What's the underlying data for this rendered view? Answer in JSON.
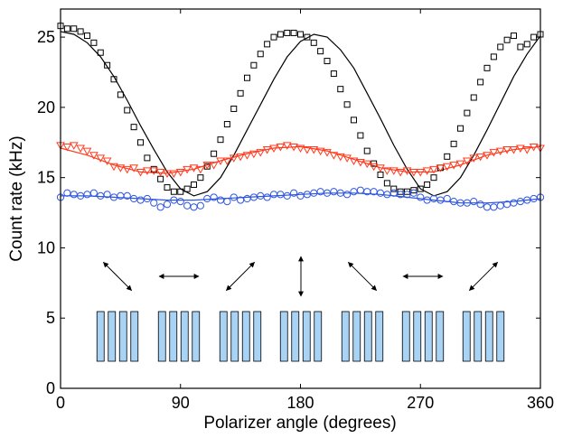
{
  "chart_data": {
    "type": "scatter",
    "title": "",
    "xlabel": "Polarizer angle (degrees)",
    "ylabel": "Count rate (kHz)",
    "xlim": [
      0,
      360
    ],
    "ylim": [
      0,
      27
    ],
    "xticks": [
      0,
      90,
      180,
      270,
      360
    ],
    "yticks": [
      0,
      5,
      10,
      15,
      20,
      25
    ],
    "grid": false,
    "legend": "none",
    "series": [
      {
        "color": "#000000",
        "marker": "square",
        "x": [
          0,
          5,
          10,
          15,
          20,
          25,
          30,
          35,
          40,
          45,
          50,
          55,
          60,
          65,
          70,
          75,
          80,
          85,
          90,
          95,
          100,
          105,
          110,
          115,
          120,
          125,
          130,
          135,
          140,
          145,
          150,
          155,
          160,
          165,
          170,
          175,
          180,
          185,
          190,
          195,
          200,
          205,
          210,
          215,
          220,
          225,
          230,
          235,
          240,
          245,
          250,
          255,
          260,
          265,
          270,
          275,
          280,
          285,
          290,
          295,
          300,
          305,
          310,
          315,
          320,
          325,
          330,
          335,
          340,
          345,
          350,
          355,
          360
        ],
        "values": [
          25.8,
          25.6,
          25.6,
          25.4,
          25.1,
          24.6,
          23.9,
          23.0,
          22.0,
          20.9,
          19.8,
          18.6,
          17.5,
          16.4,
          15.6,
          14.9,
          14.3,
          14.0,
          14.0,
          14.2,
          14.5,
          15.0,
          15.8,
          16.7,
          17.7,
          18.8,
          19.9,
          21.0,
          22.1,
          23.0,
          23.8,
          24.5,
          25.0,
          25.2,
          25.3,
          25.3,
          25.2,
          25.0,
          24.6,
          24.0,
          23.3,
          22.4,
          21.3,
          20.2,
          19.1,
          18.0,
          16.9,
          16.0,
          15.2,
          14.6,
          14.2,
          14.0,
          14.0,
          14.1,
          14.2,
          14.5,
          15.0,
          15.7,
          16.5,
          17.4,
          18.5,
          19.6,
          20.7,
          21.8,
          22.8,
          23.6,
          24.3,
          24.8,
          25.1,
          24.3,
          24.5,
          25.0,
          25.2
        ]
      },
      {
        "color": "#ff3b1f",
        "marker": "triangle-down",
        "x": [
          0,
          5,
          10,
          15,
          20,
          25,
          30,
          35,
          40,
          45,
          50,
          55,
          60,
          65,
          70,
          75,
          80,
          85,
          90,
          95,
          100,
          105,
          110,
          115,
          120,
          125,
          130,
          135,
          140,
          145,
          150,
          155,
          160,
          165,
          170,
          175,
          180,
          185,
          190,
          195,
          200,
          205,
          210,
          215,
          220,
          225,
          230,
          235,
          240,
          245,
          250,
          255,
          260,
          265,
          270,
          275,
          280,
          285,
          290,
          295,
          300,
          305,
          310,
          315,
          320,
          325,
          330,
          335,
          340,
          345,
          350,
          355,
          360
        ],
        "values": [
          17.3,
          17.2,
          17.3,
          17.1,
          16.9,
          16.6,
          16.4,
          16.2,
          15.8,
          15.7,
          15.6,
          15.7,
          15.4,
          15.5,
          15.5,
          15.4,
          15.3,
          15.3,
          15.4,
          15.6,
          15.7,
          15.6,
          15.9,
          15.9,
          16.2,
          16.2,
          16.4,
          16.5,
          16.6,
          16.7,
          16.8,
          17.0,
          17.1,
          17.2,
          17.3,
          17.2,
          17.1,
          17.0,
          17.0,
          16.9,
          16.8,
          16.6,
          16.5,
          16.4,
          16.2,
          16.1,
          16.0,
          15.8,
          15.7,
          15.5,
          15.5,
          15.4,
          15.5,
          15.4,
          15.4,
          15.5,
          15.6,
          15.7,
          15.8,
          15.9,
          16.0,
          16.2,
          16.4,
          16.5,
          16.6,
          16.8,
          16.9,
          17.0,
          17.0,
          17.1,
          17.0,
          17.2,
          17.1
        ]
      },
      {
        "color": "#2d55e0",
        "marker": "circle",
        "x": [
          0,
          5,
          10,
          15,
          20,
          25,
          30,
          35,
          40,
          45,
          50,
          55,
          60,
          65,
          70,
          75,
          80,
          85,
          90,
          95,
          100,
          105,
          110,
          115,
          120,
          125,
          130,
          135,
          140,
          145,
          150,
          155,
          160,
          165,
          170,
          175,
          180,
          185,
          190,
          195,
          200,
          205,
          210,
          215,
          220,
          225,
          230,
          235,
          240,
          245,
          250,
          255,
          260,
          265,
          270,
          275,
          280,
          285,
          290,
          295,
          300,
          305,
          310,
          315,
          320,
          325,
          330,
          335,
          340,
          345,
          350,
          355,
          360
        ],
        "values": [
          13.6,
          13.9,
          13.8,
          13.7,
          13.8,
          13.9,
          13.7,
          13.8,
          13.6,
          13.7,
          13.7,
          13.5,
          13.4,
          13.5,
          13.2,
          12.9,
          13.1,
          13.4,
          13.3,
          13.0,
          12.9,
          13.0,
          13.5,
          13.6,
          13.4,
          13.3,
          13.6,
          13.4,
          13.5,
          13.6,
          13.7,
          13.6,
          13.8,
          13.8,
          13.7,
          13.9,
          13.7,
          13.8,
          13.9,
          14.0,
          13.9,
          14.0,
          13.9,
          13.8,
          14.0,
          14.1,
          14.0,
          14.0,
          13.9,
          13.8,
          13.9,
          13.8,
          13.8,
          13.9,
          13.6,
          13.4,
          13.5,
          13.4,
          13.5,
          13.3,
          13.2,
          13.2,
          13.3,
          13.1,
          12.9,
          12.9,
          13.0,
          13.1,
          13.2,
          13.3,
          13.4,
          13.5,
          13.6
        ]
      }
    ],
    "fits": [
      {
        "color": "#000000",
        "x": [
          0,
          10,
          20,
          30,
          40,
          50,
          60,
          70,
          80,
          90,
          100,
          110,
          120,
          130,
          140,
          150,
          160,
          170,
          180,
          190,
          200,
          210,
          220,
          230,
          240,
          250,
          260,
          270,
          280,
          290,
          300,
          310,
          320,
          330,
          340,
          350,
          360
        ],
        "values": [
          25.4,
          25.2,
          24.6,
          23.6,
          22.2,
          20.5,
          18.7,
          17.0,
          15.4,
          14.2,
          13.7,
          14.0,
          15.0,
          16.6,
          18.4,
          20.2,
          22.0,
          23.6,
          24.7,
          25.2,
          25.0,
          24.1,
          22.8,
          21.0,
          19.2,
          17.3,
          15.6,
          14.2,
          13.7,
          14.0,
          15.0,
          16.6,
          18.4,
          20.3,
          22.2,
          23.8,
          25.1
        ]
      },
      {
        "color": "#ff3b1f",
        "x": [
          0,
          20,
          40,
          60,
          80,
          100,
          120,
          140,
          160,
          180,
          200,
          220,
          240,
          260,
          280,
          300,
          320,
          340,
          360
        ],
        "values": [
          17.1,
          16.6,
          15.9,
          15.4,
          15.3,
          15.6,
          16.2,
          16.7,
          17.1,
          17.2,
          16.9,
          16.3,
          15.7,
          15.4,
          15.4,
          15.9,
          16.6,
          17.0,
          17.2
        ]
      },
      {
        "color": "#2d55e0",
        "x": [
          0,
          20,
          40,
          60,
          80,
          100,
          120,
          140,
          160,
          180,
          200,
          220,
          240,
          260,
          280,
          300,
          320,
          340,
          360
        ],
        "values": [
          13.7,
          13.7,
          13.6,
          13.5,
          13.4,
          13.4,
          13.5,
          13.6,
          13.7,
          13.8,
          13.9,
          13.9,
          13.8,
          13.6,
          13.4,
          13.2,
          13.2,
          13.3,
          13.5
        ]
      }
    ],
    "inset": {
      "polarizer_arrows_deg": [
        135,
        0,
        45,
        90,
        135,
        0,
        45
      ],
      "bar_color": "#a9d3f5",
      "bars_per_group": 4
    }
  }
}
